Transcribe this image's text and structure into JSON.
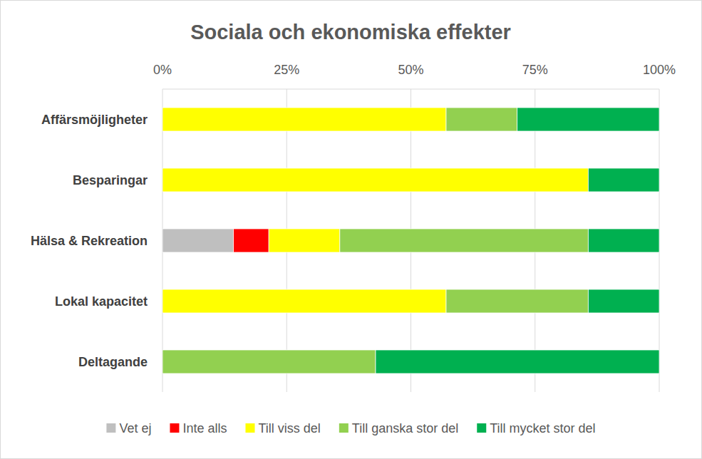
{
  "chart_data": {
    "type": "bar",
    "title": "Sociala och ekonomiska effekter",
    "orientation": "horizontal",
    "stacked": true,
    "grid": true,
    "legend": "bottom",
    "categories": [
      "Affärsmöjligheter",
      "Besparingar",
      "Hälsa & Rekreation",
      "Lokal kapacitet",
      "Deltagande"
    ],
    "xlim": [
      0,
      100
    ],
    "xticks": [
      {
        "value": 0,
        "label": "0%"
      },
      {
        "value": 25,
        "label": "25%"
      },
      {
        "value": 50,
        "label": "50%"
      },
      {
        "value": 75,
        "label": "75%"
      },
      {
        "value": 100,
        "label": "100%"
      }
    ],
    "series": [
      {
        "name": "Vet ej",
        "color": "#bfbfbf",
        "values": [
          0,
          0,
          14.3,
          0,
          0
        ]
      },
      {
        "name": "Inte alls",
        "color": "#ff0000",
        "values": [
          0,
          0,
          7.1,
          0,
          0
        ]
      },
      {
        "name": "Till viss del",
        "color": "#ffff00",
        "values": [
          57.1,
          85.7,
          14.3,
          57.1,
          0
        ]
      },
      {
        "name": "Till ganska stor del",
        "color": "#92d050",
        "values": [
          14.3,
          0,
          50,
          28.6,
          42.9
        ]
      },
      {
        "name": "Till mycket stor del",
        "color": "#00b050",
        "values": [
          28.6,
          14.3,
          14.3,
          14.3,
          57.1
        ]
      }
    ]
  }
}
